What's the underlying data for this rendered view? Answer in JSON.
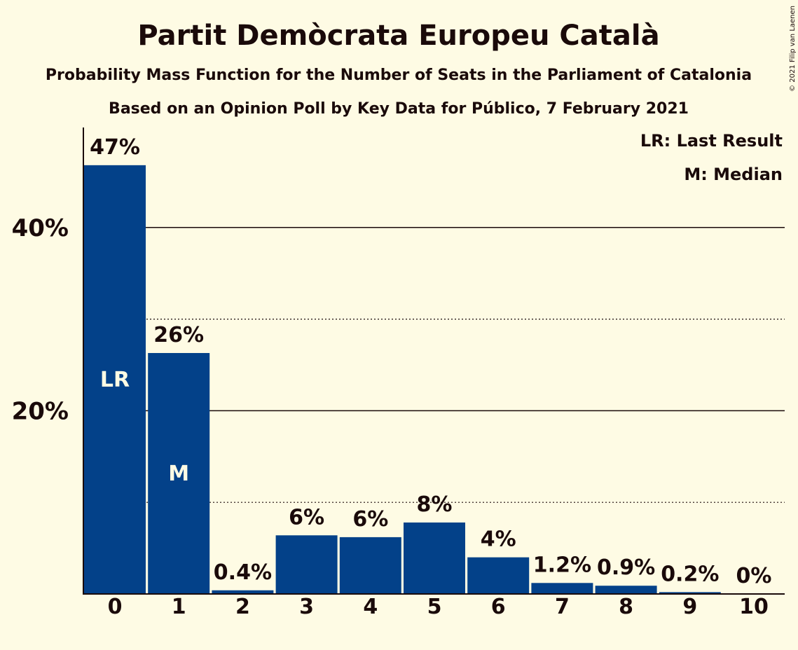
{
  "chart_data": {
    "type": "bar",
    "title": "Partit Demòcrata Europeu Català",
    "subtitle_1": "Probability Mass Function for the Number of Seats in the Parliament of Catalonia",
    "subtitle_2": "Based on an Opinion Poll by Key Data for Público, 7 February 2021",
    "copyright": "© 2021 Filip van Laenen",
    "categories": [
      "0",
      "1",
      "2",
      "3",
      "4",
      "5",
      "6",
      "7",
      "8",
      "9",
      "10"
    ],
    "values": [
      46.8,
      26.3,
      0.4,
      6.4,
      6.2,
      7.8,
      4.0,
      1.2,
      0.9,
      0.2,
      0.0
    ],
    "value_labels": [
      "47%",
      "26%",
      "0.4%",
      "6%",
      "6%",
      "8%",
      "4%",
      "1.2%",
      "0.9%",
      "0.2%",
      "0%"
    ],
    "bar_markers": [
      {
        "index": 0,
        "label": "LR"
      },
      {
        "index": 1,
        "label": "M"
      }
    ],
    "ylim": [
      0,
      50
    ],
    "y_ticks": [
      {
        "value": 20,
        "label": "20%"
      },
      {
        "value": 40,
        "label": "40%"
      }
    ],
    "y_dotted_lines": [
      10,
      30
    ],
    "legend": [
      "LR: Last Result",
      "M: Median"
    ],
    "legend_position": "top-right",
    "colors": {
      "bar": "#034189",
      "background": "#FEFBE4",
      "text": "#1a0a0a",
      "marker_text": "#FEFBE4"
    }
  }
}
